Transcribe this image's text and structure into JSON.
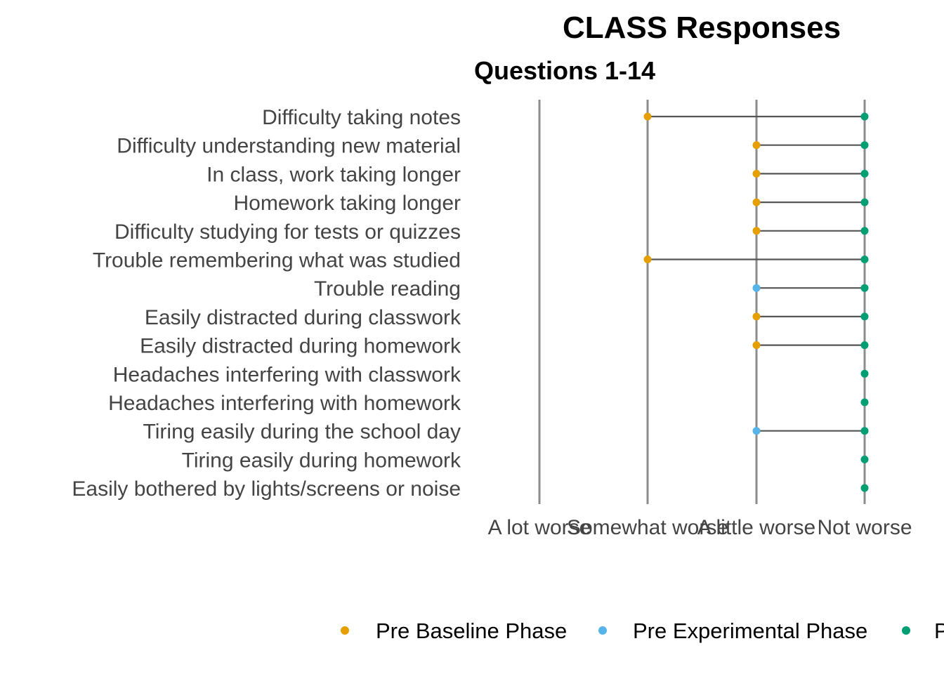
{
  "chart_data": {
    "type": "dumbbell",
    "title": "CLASS Responses",
    "subtitle": "Questions 1-14",
    "x_ticks": [
      "A lot worse",
      "Somewhat worse",
      "A little worse",
      "Not worse"
    ],
    "categories": [
      "Difficulty taking notes",
      "Difficulty understanding new material",
      "In class, work taking longer",
      "Homework taking longer",
      "Difficulty studying for tests or quizzes",
      "Trouble remembering what was studied",
      "Trouble reading",
      "Easily distracted during classwork",
      "Easily distracted during homework",
      "Headaches interfering with classwork",
      "Headaches interfering with homework",
      "Tiring easily during the school day",
      "Tiring easily during homework",
      "Easily bothered by lights/screens or noise"
    ],
    "series": [
      {
        "name": "Pre Baseline Phase",
        "color": "#E69F00",
        "values": [
          1,
          2,
          2,
          2,
          2,
          1,
          null,
          2,
          2,
          null,
          null,
          null,
          null,
          null
        ]
      },
      {
        "name": "Pre Experimental Phase",
        "color": "#56B4E9",
        "values": [
          null,
          null,
          null,
          null,
          null,
          null,
          2,
          null,
          null,
          null,
          null,
          2,
          null,
          null
        ]
      },
      {
        "name": "P",
        "color": "#009E73",
        "values": [
          3,
          3,
          3,
          3,
          3,
          3,
          3,
          3,
          3,
          3,
          3,
          3,
          3,
          3
        ]
      }
    ],
    "gridlines": true,
    "legend_position": "bottom",
    "line_color": "#555555",
    "grid_color": "#8c8c8c"
  }
}
